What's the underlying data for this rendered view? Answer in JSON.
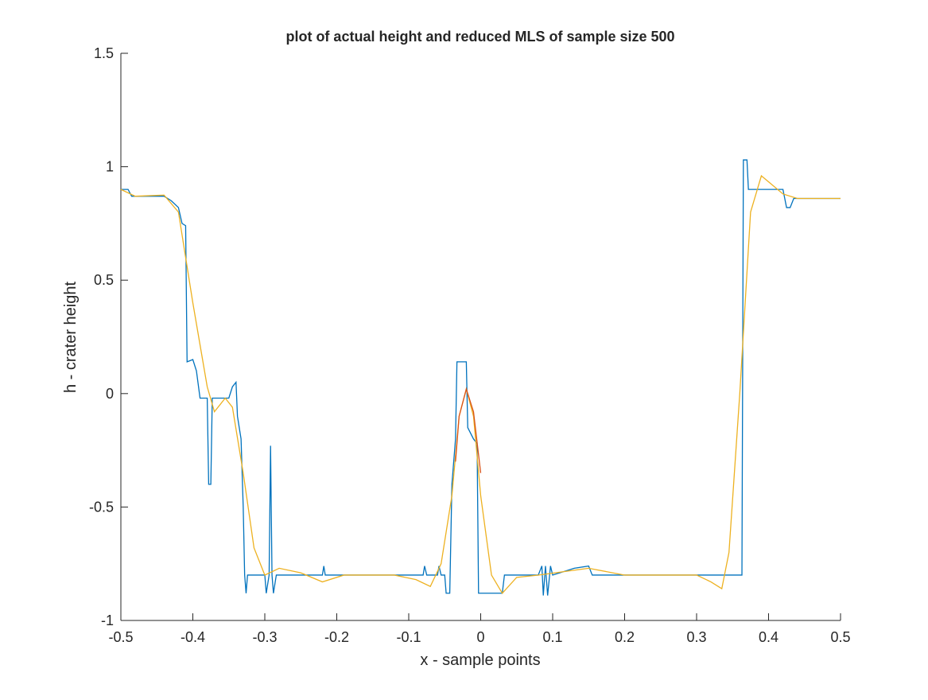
{
  "chart_data": {
    "type": "line",
    "title": "plot of actual height and reduced MLS of sample size 500",
    "x_label": "x - sample points",
    "y_label": "h - crater height",
    "xlim": [
      -0.5,
      0.5
    ],
    "ylim": [
      -1,
      1.5
    ],
    "xticks": [
      -0.5,
      -0.4,
      -0.3,
      -0.2,
      -0.1,
      0,
      0.1,
      0.2,
      0.3,
      0.4,
      0.5
    ],
    "yticks": [
      -1,
      -0.5,
      0,
      0.5,
      1,
      1.5
    ],
    "series": [
      {
        "color": "#0072bd",
        "x": [
          -0.5,
          -0.49,
          -0.485,
          -0.44,
          -0.43,
          -0.42,
          -0.415,
          -0.41,
          -0.408,
          -0.4,
          -0.395,
          -0.39,
          -0.38,
          -0.378,
          -0.375,
          -0.373,
          -0.35,
          -0.345,
          -0.34,
          -0.338,
          -0.333,
          -0.33,
          -0.328,
          -0.326,
          -0.324,
          -0.3,
          -0.298,
          -0.294,
          -0.292,
          -0.29,
          -0.288,
          -0.284,
          -0.22,
          -0.218,
          -0.216,
          -0.08,
          -0.078,
          -0.075,
          -0.06,
          -0.058,
          -0.055,
          -0.05,
          -0.048,
          -0.043,
          -0.04,
          -0.035,
          -0.033,
          -0.02,
          -0.018,
          -0.01,
          -0.005,
          -0.003,
          0.03,
          0.033,
          0.08,
          0.085,
          0.087,
          0.09,
          0.093,
          0.097,
          0.1,
          0.13,
          0.15,
          0.155,
          0.363,
          0.365,
          0.37,
          0.372,
          0.42,
          0.425,
          0.43,
          0.435,
          0.5
        ],
        "values": [
          0.9,
          0.9,
          0.87,
          0.87,
          0.85,
          0.82,
          0.75,
          0.74,
          0.14,
          0.15,
          0.1,
          -0.02,
          -0.02,
          -0.4,
          -0.4,
          -0.02,
          -0.02,
          0.03,
          0.05,
          -0.1,
          -0.2,
          -0.5,
          -0.8,
          -0.88,
          -0.8,
          -0.8,
          -0.88,
          -0.8,
          -0.23,
          -0.8,
          -0.88,
          -0.8,
          -0.8,
          -0.76,
          -0.8,
          -0.8,
          -0.76,
          -0.8,
          -0.8,
          -0.76,
          -0.8,
          -0.8,
          -0.88,
          -0.88,
          -0.4,
          -0.2,
          0.14,
          0.14,
          -0.15,
          -0.2,
          -0.22,
          -0.88,
          -0.88,
          -0.8,
          -0.8,
          -0.76,
          -0.89,
          -0.76,
          -0.89,
          -0.76,
          -0.8,
          -0.77,
          -0.76,
          -0.8,
          -0.8,
          1.03,
          1.03,
          0.9,
          0.9,
          0.82,
          0.82,
          0.86,
          0.86
        ]
      },
      {
        "color": "#edb120",
        "x": [
          -0.5,
          -0.48,
          -0.44,
          -0.42,
          -0.4,
          -0.38,
          -0.37,
          -0.355,
          -0.345,
          -0.33,
          -0.315,
          -0.3,
          -0.28,
          -0.25,
          -0.22,
          -0.19,
          -0.12,
          -0.09,
          -0.07,
          -0.055,
          -0.04,
          -0.03,
          -0.02,
          -0.01,
          0,
          0.015,
          0.03,
          0.05,
          0.08,
          0.15,
          0.2,
          0.3,
          0.32,
          0.335,
          0.345,
          0.36,
          0.375,
          0.39,
          0.405,
          0.42,
          0.44,
          0.5
        ],
        "values": [
          0.9,
          0.87,
          0.875,
          0.8,
          0.4,
          0.03,
          -0.08,
          -0.02,
          -0.06,
          -0.35,
          -0.68,
          -0.8,
          -0.77,
          -0.79,
          -0.83,
          -0.8,
          -0.8,
          -0.82,
          -0.85,
          -0.75,
          -0.45,
          -0.1,
          0.02,
          -0.1,
          -0.45,
          -0.8,
          -0.88,
          -0.81,
          -0.8,
          -0.77,
          -0.8,
          -0.8,
          -0.83,
          -0.86,
          -0.7,
          0,
          0.8,
          0.96,
          0.92,
          0.88,
          0.86,
          0.86
        ]
      },
      {
        "color": "#d95319",
        "x": [
          -0.035,
          -0.03,
          -0.02,
          -0.01,
          0
        ],
        "values": [
          -0.3,
          -0.1,
          0.02,
          -0.08,
          -0.35
        ]
      }
    ]
  }
}
